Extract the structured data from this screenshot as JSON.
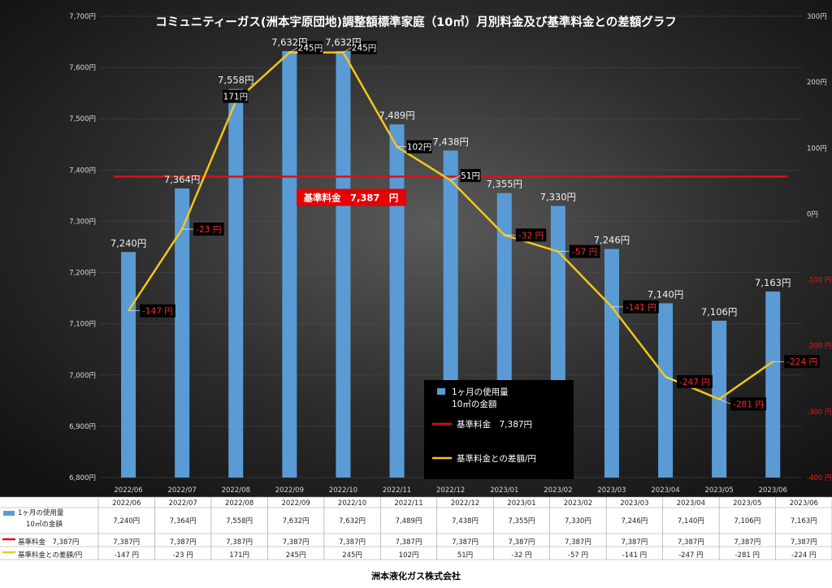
{
  "chart_data": {
    "type": "bar",
    "title": "コミュニティーガス(洲本宇原団地)調整額標準家庭（10㎥）月別料金及び基準料金との差額グラフ",
    "categories": [
      "2022/06",
      "2022/07",
      "2022/08",
      "2022/09",
      "2022/10",
      "2022/11",
      "2022/12",
      "2023/01",
      "2023/02",
      "2023/03",
      "2023/04",
      "2023/05",
      "2023/06"
    ],
    "series": [
      {
        "name": "1ヶ月の使用量 10㎥の金額",
        "type": "bar",
        "axis": "left",
        "values": [
          7240,
          7364,
          7558,
          7632,
          7632,
          7489,
          7438,
          7355,
          7330,
          7246,
          7140,
          7106,
          7163
        ],
        "labels": [
          "7,240円",
          "7,364円",
          "7,558円",
          "7,632円",
          "7,632円",
          "7,489円",
          "7,438円",
          "7,355円",
          "7,330円",
          "7,246円",
          "7,140円",
          "7,106円",
          "7,163円"
        ],
        "color": "#5b9bd5"
      },
      {
        "name": "基準料金 7,387円",
        "type": "line",
        "axis": "left",
        "values": [
          7387,
          7387,
          7387,
          7387,
          7387,
          7387,
          7387,
          7387,
          7387,
          7387,
          7387,
          7387,
          7387
        ],
        "color": "#e01010"
      },
      {
        "name": "基準料金との差額/円",
        "type": "line",
        "axis": "right",
        "values": [
          -147,
          -23,
          171,
          245,
          245,
          102,
          51,
          -32,
          -57,
          -141,
          -247,
          -281,
          -224
        ],
        "labels": [
          "-147 円",
          "-23 円",
          "171円",
          "245円",
          "245円",
          "102円",
          "51円",
          "-32 円",
          "-57 円",
          "-141 円",
          "-247 円",
          "-281 円",
          "-224 円"
        ],
        "color": "#f5c518"
      }
    ],
    "left_axis": {
      "range": [
        6800,
        7700
      ],
      "ticks": [
        "6,800円",
        "6,900円",
        "7,000円",
        "7,100円",
        "7,200円",
        "7,300円",
        "7,400円",
        "7,500円",
        "7,600円",
        "7,700円"
      ]
    },
    "right_axis": {
      "range": [
        -400,
        300
      ],
      "ticks": [
        "-400 円",
        "-300 円",
        "-200 円",
        "-100 円",
        "0円",
        "100円",
        "200円",
        "300円"
      ]
    },
    "baseline_annotation": "基準料金　7,387　円",
    "legend": {
      "placement": "bottom-center",
      "entries": [
        "1ヶ月の使用量\n10㎥の金額",
        "基準料金　7,387円",
        "基準料金との差額/円"
      ]
    },
    "table": {
      "headers": [
        "2022/06",
        "2022/07",
        "2022/08",
        "2022/09",
        "2022/10",
        "2022/11",
        "2022/12",
        "2023/01",
        "2023/02",
        "2023/03",
        "2023/04",
        "2023/05",
        "2023/06"
      ],
      "rows": [
        {
          "label": "1ヶ月の使用量\n10㎥の金額",
          "cells": [
            "7,240円",
            "7,364円",
            "7,558円",
            "7,632円",
            "7,632円",
            "7,489円",
            "7,438円",
            "7,355円",
            "7,330円",
            "7,246円",
            "7,140円",
            "7,106円",
            "7,163円"
          ]
        },
        {
          "label": "基準料金　7,387円",
          "cells": [
            "7,387円",
            "7,387円",
            "7,387円",
            "7,387円",
            "7,387円",
            "7,387円",
            "7,387円",
            "7,387円",
            "7,387円",
            "7,387円",
            "7,387円",
            "7,387円",
            "7,387円"
          ]
        },
        {
          "label": "基準料金との差額/円",
          "cells": [
            "-147 円",
            "-23 円",
            "171円",
            "245円",
            "245円",
            "102円",
            "51円",
            "-32 円",
            "-57 円",
            "-141 円",
            "-247 円",
            "-281 円",
            "-224 円"
          ]
        }
      ]
    },
    "background": "dark radial gradient"
  },
  "footer": {
    "company": "洲本液化ガス株式会社"
  }
}
